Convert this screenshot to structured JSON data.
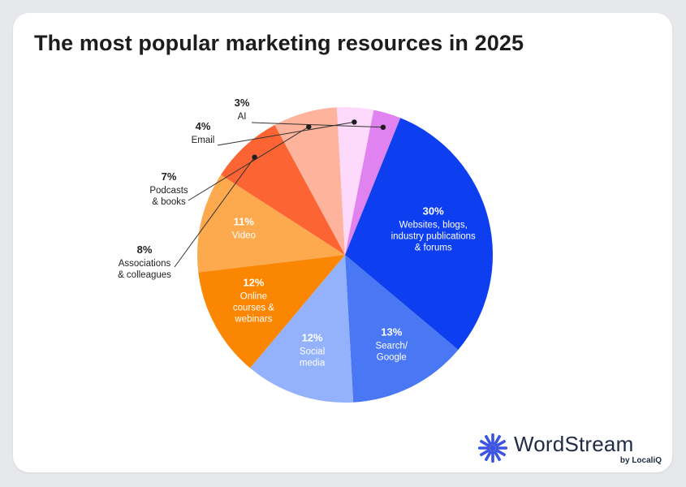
{
  "title": "The most popular marketing resources in 2025",
  "brand": {
    "name": "WordStream",
    "sub": "by LocaliQ",
    "color": "#3d54e0"
  },
  "chart_data": {
    "type": "pie",
    "title": "The most popular marketing resources in 2025",
    "start_angle_deg": 22,
    "slices": [
      {
        "pct_label": "30%",
        "label": [
          "Websites, blogs,",
          "industry publications",
          "& forums"
        ],
        "value": 30,
        "color": "#0d3ff0",
        "text_color": "#ffffff",
        "label_inside": true
      },
      {
        "pct_label": "13%",
        "label": [
          "Search/",
          "Google"
        ],
        "value": 13,
        "color": "#4a78f5",
        "text_color": "#ffffff",
        "label_inside": true
      },
      {
        "pct_label": "12%",
        "label": [
          "Social",
          "media"
        ],
        "value": 12,
        "color": "#94b2fc",
        "text_color": "#ffffff",
        "label_inside": true
      },
      {
        "pct_label": "12%",
        "label": [
          "Online",
          "courses &",
          "webinars"
        ],
        "value": 12,
        "color": "#fb8602",
        "text_color": "#ffffff",
        "label_inside": true
      },
      {
        "pct_label": "11%",
        "label": [
          "Video"
        ],
        "value": 11,
        "color": "#fda94e",
        "text_color": "#ffffff",
        "label_inside": true
      },
      {
        "pct_label": "8%",
        "label": [
          "Associations",
          "& colleagues"
        ],
        "value": 8,
        "color": "#fc6433",
        "text_color": "#222222",
        "label_inside": false
      },
      {
        "pct_label": "7%",
        "label": [
          "Podcasts",
          "& books"
        ],
        "value": 7,
        "color": "#fdb39c",
        "text_color": "#222222",
        "label_inside": false
      },
      {
        "pct_label": "4%",
        "label": [
          "Email"
        ],
        "value": 4,
        "color": "#fdd9fb",
        "text_color": "#222222",
        "label_inside": false
      },
      {
        "pct_label": "3%",
        "label": [
          "AI"
        ],
        "value": 3,
        "color": "#e083f0",
        "text_color": "#222222",
        "label_inside": false
      }
    ]
  }
}
